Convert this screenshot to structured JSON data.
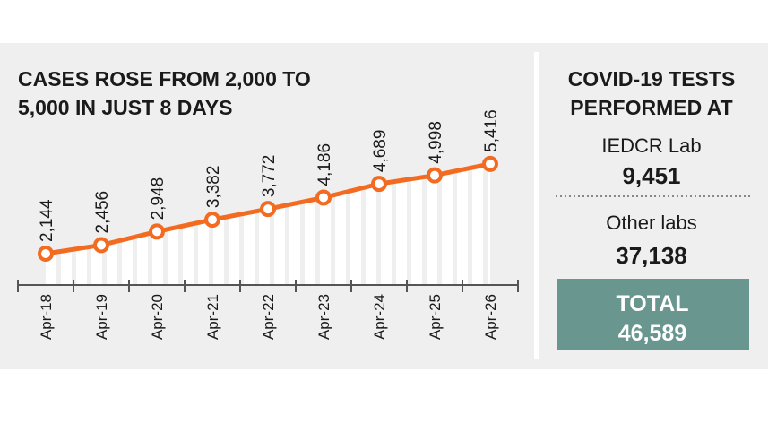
{
  "chart_data": {
    "type": "line",
    "title": [
      "CASES ROSE FROM 2,000 TO",
      "5,000 IN JUST 8 DAYS"
    ],
    "categories": [
      "Apr-18",
      "Apr-19",
      "Apr-20",
      "Apr-21",
      "Apr-22",
      "Apr-23",
      "Apr-24",
      "Apr-25",
      "Apr-26"
    ],
    "values": [
      2144,
      2456,
      2948,
      3382,
      3772,
      4186,
      4689,
      4998,
      5416
    ],
    "value_labels": [
      "2,144",
      "2,456",
      "2,948",
      "3,382",
      "3,772",
      "4,186",
      "4,689",
      "4,998",
      "5,416"
    ],
    "color": "#f26b21",
    "ylim": [
      1000,
      6000
    ]
  },
  "tests_panel": {
    "title": [
      "COVID-19 TESTS",
      "PERFORMED AT"
    ],
    "items": [
      {
        "label": "IEDCR Lab",
        "value": "9,451"
      },
      {
        "label": "Other labs",
        "value": "37,138"
      }
    ],
    "total": {
      "label": "TOTAL",
      "value": "46,589"
    }
  }
}
